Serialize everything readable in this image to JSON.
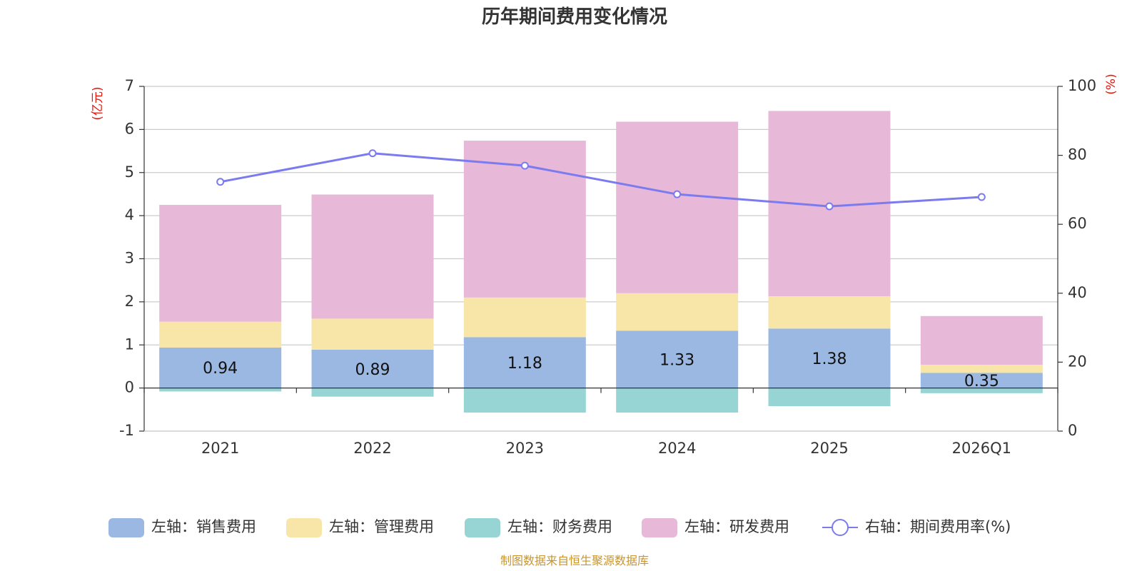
{
  "chart_data": {
    "type": "bar",
    "stacked": true,
    "title": "历年期间费用变化情况",
    "categories": [
      "2021",
      "2022",
      "2023",
      "2024",
      "2025",
      "2026Q1"
    ],
    "left_axis": {
      "unit": "(亿元)",
      "min": -1,
      "max": 7,
      "ticks": [
        "-1",
        "0",
        "1",
        "2",
        "3",
        "4",
        "5",
        "6",
        "7"
      ]
    },
    "right_axis": {
      "unit": "(%)",
      "min": 0,
      "max": 100,
      "ticks": [
        "0",
        "20",
        "40",
        "60",
        "80",
        "100"
      ]
    },
    "series": [
      {
        "name": "左轴：销售费用",
        "color": "#9bb8e2",
        "values": [
          0.94,
          0.89,
          1.18,
          1.33,
          1.38,
          0.35
        ],
        "labels": [
          "0.94",
          "0.89",
          "1.18",
          "1.33",
          "1.38",
          "0.35"
        ]
      },
      {
        "name": "左轴：管理费用",
        "color": "#f8e6a8",
        "values": [
          0.6,
          0.72,
          0.92,
          0.87,
          0.75,
          0.19
        ],
        "labels": []
      },
      {
        "name": "左轴：财务费用",
        "color": "#97d4d4",
        "values": [
          -0.08,
          -0.2,
          -0.57,
          -0.57,
          -0.42,
          -0.12
        ],
        "labels": []
      },
      {
        "name": "左轴：研发费用",
        "color": "#e8b8d9",
        "values": [
          2.71,
          2.88,
          3.64,
          3.98,
          4.3,
          1.13
        ],
        "labels": []
      }
    ],
    "line": {
      "name": "右轴：期间费用率(%)",
      "color": "#7b7bef",
      "values": [
        72.3,
        80.6,
        77,
        68.7,
        65.2,
        67.9
      ]
    },
    "grid": true,
    "legend": "bottom"
  },
  "footer": {
    "source": "制图数据来自恒生聚源数据库"
  }
}
